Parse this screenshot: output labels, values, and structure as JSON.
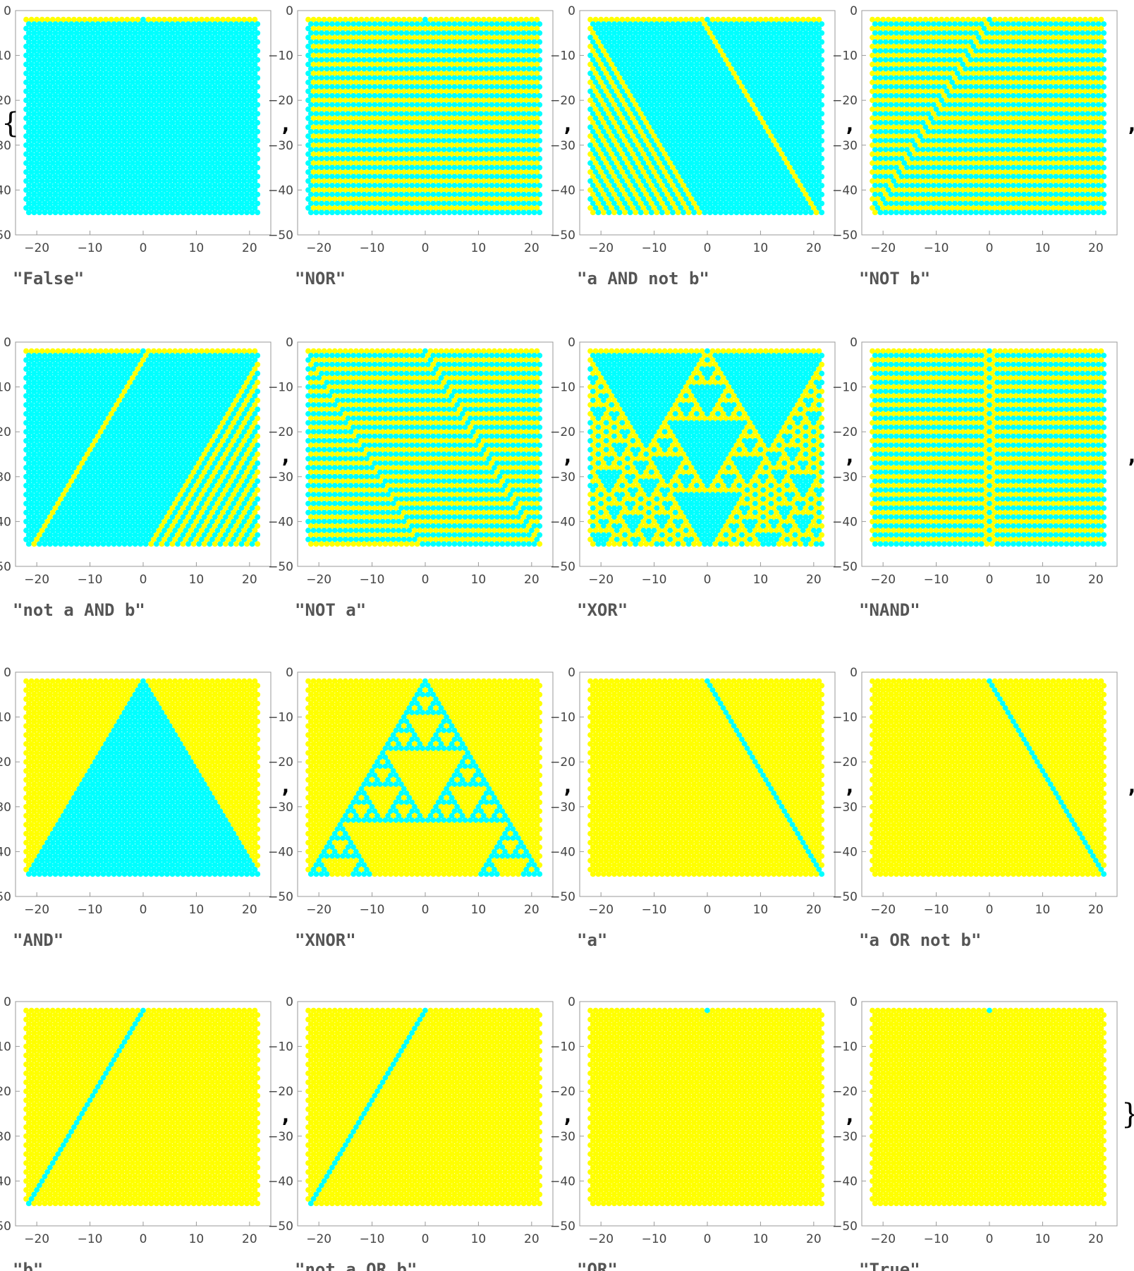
{
  "list_brackets": {
    "open": "{",
    "close": "}",
    "separator": ","
  },
  "colors": {
    "cell_on": "#ffff00",
    "cell_off": "#00ffff",
    "frame": "#999999",
    "tick_text": "#444444"
  },
  "chart_data": [
    {
      "type": "scatter",
      "label": "\"False\"",
      "rule": "False",
      "xlim": [
        -24,
        24
      ],
      "ylim": [
        -50,
        0
      ],
      "xticks": [
        "-20",
        "-10",
        "0",
        "10",
        "20"
      ],
      "yticks": [
        "0",
        "-10",
        "-20",
        "-30",
        "-40",
        "-50"
      ]
    },
    {
      "type": "scatter",
      "label": "\"NOR\"",
      "rule": "NOR",
      "xlim": [
        -24,
        24
      ],
      "ylim": [
        -50,
        0
      ],
      "xticks": [
        "-20",
        "-10",
        "0",
        "10",
        "20"
      ],
      "yticks": [
        "0",
        "-10",
        "-20",
        "-30",
        "-40",
        "-50"
      ]
    },
    {
      "type": "scatter",
      "label": "\"a AND not b\"",
      "rule": "a AND not b",
      "xlim": [
        -24,
        24
      ],
      "ylim": [
        -50,
        0
      ],
      "xticks": [
        "-20",
        "-10",
        "0",
        "10",
        "20"
      ],
      "yticks": [
        "0",
        "-10",
        "-20",
        "-30",
        "-40",
        "-50"
      ]
    },
    {
      "type": "scatter",
      "label": "\"NOT b\"",
      "rule": "NOT b",
      "xlim": [
        -24,
        24
      ],
      "ylim": [
        -50,
        0
      ],
      "xticks": [
        "-20",
        "-10",
        "0",
        "10",
        "20"
      ],
      "yticks": [
        "0",
        "-10",
        "-20",
        "-30",
        "-40",
        "-50"
      ]
    },
    {
      "type": "scatter",
      "label": "\"not a AND b\"",
      "rule": "not a AND b",
      "xlim": [
        -24,
        24
      ],
      "ylim": [
        -50,
        0
      ],
      "xticks": [
        "-20",
        "-10",
        "0",
        "10",
        "20"
      ],
      "yticks": [
        "0",
        "-10",
        "-20",
        "-30",
        "-40",
        "-50"
      ]
    },
    {
      "type": "scatter",
      "label": "\"NOT a\"",
      "rule": "NOT a",
      "xlim": [
        -24,
        24
      ],
      "ylim": [
        -50,
        0
      ],
      "xticks": [
        "-20",
        "-10",
        "0",
        "10",
        "20"
      ],
      "yticks": [
        "0",
        "-10",
        "-20",
        "-30",
        "-40",
        "-50"
      ]
    },
    {
      "type": "scatter",
      "label": "\"XOR\"",
      "rule": "XOR",
      "xlim": [
        -24,
        24
      ],
      "ylim": [
        -50,
        0
      ],
      "xticks": [
        "-20",
        "-10",
        "0",
        "10",
        "20"
      ],
      "yticks": [
        "0",
        "-10",
        "-20",
        "-30",
        "-40",
        "-50"
      ]
    },
    {
      "type": "scatter",
      "label": "\"NAND\"",
      "rule": "NAND",
      "xlim": [
        -24,
        24
      ],
      "ylim": [
        -50,
        0
      ],
      "xticks": [
        "-20",
        "-10",
        "0",
        "10",
        "20"
      ],
      "yticks": [
        "0",
        "-10",
        "-20",
        "-30",
        "-40",
        "-50"
      ]
    },
    {
      "type": "scatter",
      "label": "\"AND\"",
      "rule": "AND",
      "xlim": [
        -24,
        24
      ],
      "ylim": [
        -50,
        0
      ],
      "xticks": [
        "-20",
        "-10",
        "0",
        "10",
        "20"
      ],
      "yticks": [
        "0",
        "-10",
        "-20",
        "-30",
        "-40",
        "-50"
      ]
    },
    {
      "type": "scatter",
      "label": "\"XNOR\"",
      "rule": "XNOR",
      "xlim": [
        -24,
        24
      ],
      "ylim": [
        -50,
        0
      ],
      "xticks": [
        "-20",
        "-10",
        "0",
        "10",
        "20"
      ],
      "yticks": [
        "0",
        "-10",
        "-20",
        "-30",
        "-40",
        "-50"
      ]
    },
    {
      "type": "scatter",
      "label": "\"a\"",
      "rule": "a",
      "xlim": [
        -24,
        24
      ],
      "ylim": [
        -50,
        0
      ],
      "xticks": [
        "-20",
        "-10",
        "0",
        "10",
        "20"
      ],
      "yticks": [
        "0",
        "-10",
        "-20",
        "-30",
        "-40",
        "-50"
      ]
    },
    {
      "type": "scatter",
      "label": "\"a OR not b\"",
      "rule": "a OR not b",
      "xlim": [
        -24,
        24
      ],
      "ylim": [
        -50,
        0
      ],
      "xticks": [
        "-20",
        "-10",
        "0",
        "10",
        "20"
      ],
      "yticks": [
        "0",
        "-10",
        "-20",
        "-30",
        "-40",
        "-50"
      ]
    },
    {
      "type": "scatter",
      "label": "\"b\"",
      "rule": "b",
      "xlim": [
        -24,
        24
      ],
      "ylim": [
        -50,
        0
      ],
      "xticks": [
        "-20",
        "-10",
        "0",
        "10",
        "20"
      ],
      "yticks": [
        "0",
        "-10",
        "-20",
        "-30",
        "-40",
        "-50"
      ]
    },
    {
      "type": "scatter",
      "label": "\"not a OR b\"",
      "rule": "not a OR b",
      "xlim": [
        -24,
        24
      ],
      "ylim": [
        -50,
        0
      ],
      "xticks": [
        "-20",
        "-10",
        "0",
        "10",
        "20"
      ],
      "yticks": [
        "0",
        "-10",
        "-20",
        "-30",
        "-40",
        "-50"
      ]
    },
    {
      "type": "scatter",
      "label": "\"OR\"",
      "rule": "OR",
      "xlim": [
        -24,
        24
      ],
      "ylim": [
        -50,
        0
      ],
      "xticks": [
        "-20",
        "-10",
        "0",
        "10",
        "20"
      ],
      "yticks": [
        "0",
        "-10",
        "-20",
        "-30",
        "-40",
        "-50"
      ]
    },
    {
      "type": "scatter",
      "label": "\"True\"",
      "rule": "True",
      "xlim": [
        -24,
        24
      ],
      "ylim": [
        -50,
        0
      ],
      "xticks": [
        "-20",
        "-10",
        "0",
        "10",
        "20"
      ],
      "yticks": [
        "0",
        "-10",
        "-20",
        "-30",
        "-40",
        "-50"
      ]
    }
  ]
}
